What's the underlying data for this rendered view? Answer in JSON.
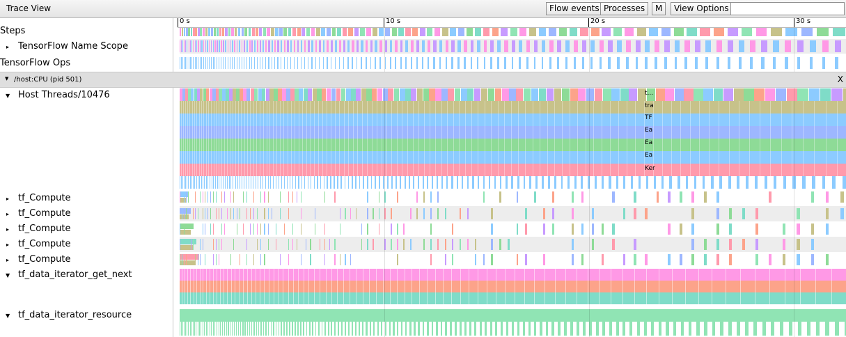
{
  "toolbar": {
    "title": "Trace View",
    "buttons": [
      "Flow events",
      "Processes",
      "M",
      "View Options"
    ],
    "search_value": ""
  },
  "ruler": {
    "ticks": [
      "0 s",
      "10 s",
      "20 s",
      "30 s"
    ]
  },
  "tracks": {
    "steps": "Steps",
    "name_scope": "TensorFlow Name Scope",
    "ops": "TensorFlow Ops",
    "process": "/host:CPU (pid 501)",
    "close": "X",
    "host_threads": "Host Threads/10476",
    "compute_threads": [
      "tf_Compute",
      "tf_Compute",
      "tf_Compute",
      "tf_Compute",
      "tf_Compute"
    ],
    "iterator_get_next": "tf_data_iterator_get_next",
    "iterator_resource": "tf_data_iterator_resource"
  },
  "slice_labels": [
    "t...",
    "tra",
    "TF",
    "Ea",
    "Ea",
    "Ea",
    "Ker"
  ],
  "colors": {
    "pink": "#ff99e6",
    "olive": "#c7c28a",
    "blue": "#8ccbff",
    "periwinkle": "#9db7ff",
    "green": "#8edb97",
    "teal": "#7fdcc8",
    "rose": "#ff9aac",
    "salmon": "#fca38a",
    "violet": "#c79bff",
    "mint": "#90e4b4"
  }
}
